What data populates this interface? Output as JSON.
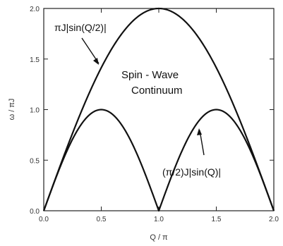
{
  "chart_data": {
    "type": "line",
    "title": "",
    "xlabel": "Q / π",
    "ylabel": "ω / πJ",
    "xlim": [
      0.0,
      2.0
    ],
    "ylim": [
      0.0,
      2.0
    ],
    "x_ticks": [
      0.0,
      0.5,
      1.0,
      1.5,
      2.0
    ],
    "y_ticks": [
      0.0,
      0.5,
      1.0,
      1.5,
      2.0
    ],
    "x_tick_labels": [
      "0.0",
      "0.5",
      "1.0",
      "1.5",
      "2.0"
    ],
    "y_tick_labels": [
      "0.0",
      "0.5",
      "1.0",
      "1.5",
      "2.0"
    ],
    "grid": false,
    "legend": "none",
    "series": [
      {
        "name": "πJ|sin(Q/2)|",
        "x": [
          0.0,
          0.1,
          0.2,
          0.3,
          0.4,
          0.5,
          0.6,
          0.7,
          0.8,
          0.9,
          1.0,
          1.1,
          1.2,
          1.3,
          1.4,
          1.5,
          1.6,
          1.7,
          1.8,
          1.9,
          2.0
        ],
        "values": [
          0.0,
          0.313,
          0.618,
          0.908,
          1.176,
          1.414,
          1.618,
          1.782,
          1.902,
          1.975,
          2.0,
          1.975,
          1.902,
          1.782,
          1.618,
          1.414,
          1.176,
          0.908,
          0.618,
          0.313,
          0.0
        ]
      },
      {
        "name": "(π/2)J|sin(Q)|",
        "x": [
          0.0,
          0.1,
          0.2,
          0.3,
          0.4,
          0.5,
          0.6,
          0.7,
          0.8,
          0.9,
          1.0,
          1.1,
          1.2,
          1.3,
          1.4,
          1.5,
          1.6,
          1.7,
          1.8,
          1.9,
          2.0
        ],
        "values": [
          0.0,
          0.309,
          0.588,
          0.809,
          0.951,
          1.0,
          0.951,
          0.809,
          0.588,
          0.309,
          0.0,
          0.309,
          0.588,
          0.809,
          0.951,
          1.0,
          0.951,
          0.809,
          0.588,
          0.309,
          0.0
        ]
      }
    ],
    "annotations": {
      "upper_curve_label": "πJ|sin(Q/2)|",
      "lower_curve_label": "(π/2)J|sin(Q)|",
      "region_line1": "Spin - Wave",
      "region_line2": "Continuum"
    },
    "colors": {
      "line": "#111111",
      "axis": "#222222"
    }
  }
}
